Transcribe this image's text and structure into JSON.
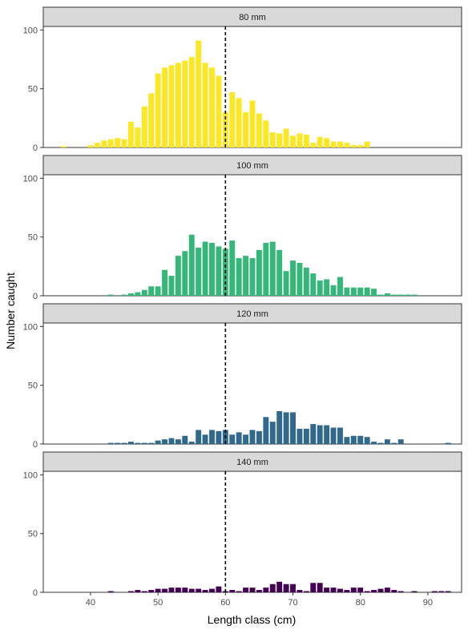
{
  "chart_data": {
    "type": "bar",
    "facet_by": "mesh size",
    "xlabel": "Length class (cm)",
    "ylabel": "Number caught",
    "xlim": [
      33,
      95
    ],
    "ylim": [
      0,
      103
    ],
    "x_ticks": [
      "40",
      "50",
      "60",
      "70",
      "80",
      "90"
    ],
    "y_ticks": [
      "0",
      "50",
      "100"
    ],
    "reference_line": {
      "x": 60,
      "style": "dashed"
    },
    "grid": false,
    "legend": "none",
    "panels": [
      {
        "label": "80 mm",
        "color": "#FDE725",
        "points": [
          [
            36,
            1
          ],
          [
            40,
            2
          ],
          [
            41,
            4
          ],
          [
            42,
            6
          ],
          [
            43,
            7
          ],
          [
            44,
            8
          ],
          [
            45,
            7
          ],
          [
            46,
            22
          ],
          [
            47,
            17
          ],
          [
            48,
            35
          ],
          [
            49,
            46
          ],
          [
            50,
            63
          ],
          [
            51,
            68
          ],
          [
            52,
            70
          ],
          [
            53,
            72
          ],
          [
            54,
            74
          ],
          [
            55,
            77
          ],
          [
            56,
            91
          ],
          [
            57,
            72
          ],
          [
            58,
            68
          ],
          [
            59,
            61
          ],
          [
            60,
            30
          ],
          [
            61,
            47
          ],
          [
            62,
            42
          ],
          [
            63,
            30
          ],
          [
            64,
            40
          ],
          [
            65,
            29
          ],
          [
            66,
            23
          ],
          [
            67,
            13
          ],
          [
            68,
            12
          ],
          [
            69,
            16
          ],
          [
            70,
            10
          ],
          [
            71,
            12
          ],
          [
            72,
            11
          ],
          [
            73,
            4
          ],
          [
            74,
            9
          ],
          [
            75,
            8
          ],
          [
            76,
            5
          ],
          [
            77,
            5
          ],
          [
            78,
            4
          ],
          [
            79,
            2
          ],
          [
            80,
            2
          ],
          [
            81,
            5
          ]
        ]
      },
      {
        "label": "100 mm",
        "color": "#35B779",
        "points": [
          [
            43,
            1
          ],
          [
            45,
            1
          ],
          [
            46,
            2
          ],
          [
            47,
            3
          ],
          [
            48,
            5
          ],
          [
            49,
            8
          ],
          [
            50,
            8
          ],
          [
            51,
            22
          ],
          [
            52,
            17
          ],
          [
            53,
            34
          ],
          [
            54,
            38
          ],
          [
            55,
            52
          ],
          [
            56,
            41
          ],
          [
            57,
            46
          ],
          [
            58,
            45
          ],
          [
            59,
            42
          ],
          [
            60,
            40
          ],
          [
            61,
            47
          ],
          [
            62,
            32
          ],
          [
            63,
            34
          ],
          [
            64,
            32
          ],
          [
            65,
            39
          ],
          [
            66,
            45
          ],
          [
            67,
            46
          ],
          [
            68,
            39
          ],
          [
            69,
            21
          ],
          [
            70,
            30
          ],
          [
            71,
            28
          ],
          [
            72,
            24
          ],
          [
            73,
            19
          ],
          [
            74,
            13
          ],
          [
            75,
            14
          ],
          [
            76,
            9
          ],
          [
            77,
            16
          ],
          [
            78,
            7
          ],
          [
            79,
            7
          ],
          [
            80,
            7
          ],
          [
            81,
            7
          ],
          [
            82,
            6
          ],
          [
            83,
            1
          ],
          [
            84,
            2
          ],
          [
            85,
            1
          ],
          [
            86,
            1
          ],
          [
            87,
            1
          ],
          [
            88,
            1
          ]
        ]
      },
      {
        "label": "120 mm",
        "color": "#31688E",
        "points": [
          [
            43,
            1
          ],
          [
            44,
            1
          ],
          [
            45,
            1
          ],
          [
            46,
            2
          ],
          [
            47,
            1
          ],
          [
            48,
            1
          ],
          [
            49,
            1
          ],
          [
            50,
            3
          ],
          [
            51,
            4
          ],
          [
            52,
            5
          ],
          [
            53,
            4
          ],
          [
            54,
            7
          ],
          [
            55,
            2
          ],
          [
            56,
            12
          ],
          [
            57,
            8
          ],
          [
            58,
            12
          ],
          [
            59,
            11
          ],
          [
            60,
            12
          ],
          [
            61,
            8
          ],
          [
            62,
            10
          ],
          [
            63,
            8
          ],
          [
            64,
            12
          ],
          [
            65,
            11
          ],
          [
            66,
            23
          ],
          [
            67,
            19
          ],
          [
            68,
            28
          ],
          [
            69,
            27
          ],
          [
            70,
            27
          ],
          [
            71,
            13
          ],
          [
            72,
            13
          ],
          [
            73,
            17
          ],
          [
            74,
            16
          ],
          [
            75,
            16
          ],
          [
            76,
            14
          ],
          [
            77,
            14
          ],
          [
            78,
            6
          ],
          [
            79,
            7
          ],
          [
            80,
            7
          ],
          [
            81,
            6
          ],
          [
            82,
            2
          ],
          [
            83,
            1
          ],
          [
            84,
            4
          ],
          [
            85,
            1
          ],
          [
            86,
            4
          ],
          [
            93,
            1
          ]
        ]
      },
      {
        "label": "140 mm",
        "color": "#440154",
        "points": [
          [
            43,
            1
          ],
          [
            46,
            1
          ],
          [
            47,
            2
          ],
          [
            48,
            1
          ],
          [
            49,
            2
          ],
          [
            50,
            3
          ],
          [
            51,
            3
          ],
          [
            52,
            4
          ],
          [
            53,
            4
          ],
          [
            54,
            4
          ],
          [
            55,
            3
          ],
          [
            56,
            3
          ],
          [
            57,
            2
          ],
          [
            58,
            3
          ],
          [
            59,
            5
          ],
          [
            60,
            1
          ],
          [
            61,
            2
          ],
          [
            62,
            1
          ],
          [
            63,
            4
          ],
          [
            64,
            4
          ],
          [
            65,
            2
          ],
          [
            66,
            4
          ],
          [
            67,
            7
          ],
          [
            68,
            9
          ],
          [
            69,
            7
          ],
          [
            70,
            7
          ],
          [
            71,
            2
          ],
          [
            72,
            1
          ],
          [
            73,
            8
          ],
          [
            74,
            8
          ],
          [
            75,
            4
          ],
          [
            76,
            4
          ],
          [
            77,
            3
          ],
          [
            78,
            2
          ],
          [
            79,
            4
          ],
          [
            80,
            4
          ],
          [
            81,
            1
          ],
          [
            82,
            2
          ],
          [
            83,
            3
          ],
          [
            84,
            4
          ],
          [
            85,
            2
          ],
          [
            86,
            1
          ],
          [
            88,
            1
          ],
          [
            91,
            1
          ],
          [
            92,
            1
          ],
          [
            93,
            1
          ]
        ]
      }
    ]
  }
}
